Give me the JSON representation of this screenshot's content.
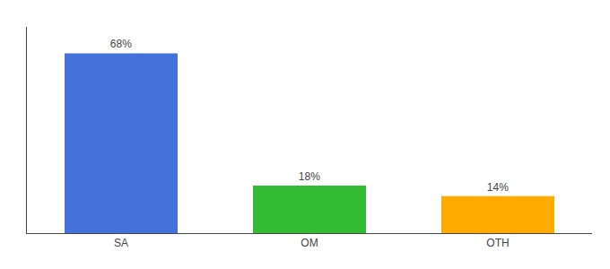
{
  "chart_data": {
    "type": "bar",
    "categories": [
      "SA",
      "OM",
      "OTH"
    ],
    "values": [
      68,
      18,
      14
    ],
    "value_labels": [
      "68%",
      "18%",
      "14%"
    ],
    "data_labels": true,
    "colors": [
      "#4472db",
      "#33bb33",
      "#ffaa00"
    ],
    "ylim": [
      0,
      78
    ],
    "grid": false,
    "tick_labels": "x"
  }
}
